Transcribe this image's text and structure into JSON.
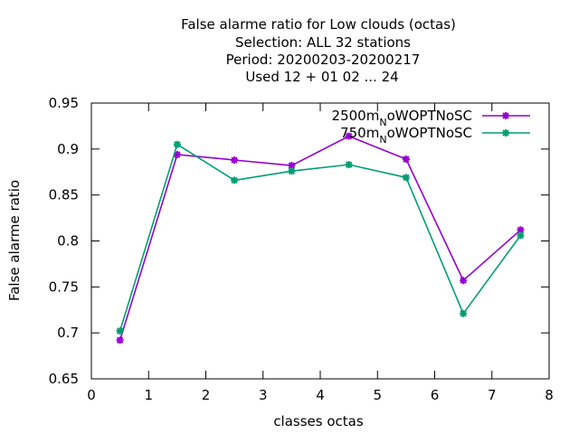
{
  "chart_data": {
    "type": "line",
    "title_lines": [
      "False alarme ratio  for Low clouds (octas)",
      "Selection: ALL     32 stations",
      "Period: 20200203-20200217",
      "Used  12 + 01 02 ... 24"
    ],
    "xlabel": "classes octas",
    "ylabel": "False alarme ratio",
    "xlim": [
      0,
      8
    ],
    "ylim": [
      0.65,
      0.95
    ],
    "x_ticks": [
      "0",
      "1",
      "2",
      "3",
      "4",
      "5",
      "6",
      "7",
      "8"
    ],
    "y_ticks": [
      "0.65",
      "0.7",
      "0.75",
      "0.8",
      "0.85",
      "0.9",
      "0.95"
    ],
    "grid": false,
    "legend_position": "top-right",
    "x": [
      0.5,
      1.5,
      2.5,
      3.5,
      4.5,
      5.5,
      6.5,
      7.5
    ],
    "series": [
      {
        "name_prefix": "2500m",
        "name_subscript": "N",
        "name_suffix": "oWOPTNoSC",
        "color": "#9400d3",
        "values": [
          0.692,
          0.894,
          0.888,
          0.882,
          0.914,
          0.889,
          0.757,
          0.812
        ]
      },
      {
        "name_prefix": "750m",
        "name_subscript": "N",
        "name_suffix": "oWOPTNoSC",
        "color": "#009e73",
        "values": [
          0.702,
          0.905,
          0.866,
          0.876,
          0.883,
          0.869,
          0.721,
          0.806
        ]
      }
    ]
  }
}
